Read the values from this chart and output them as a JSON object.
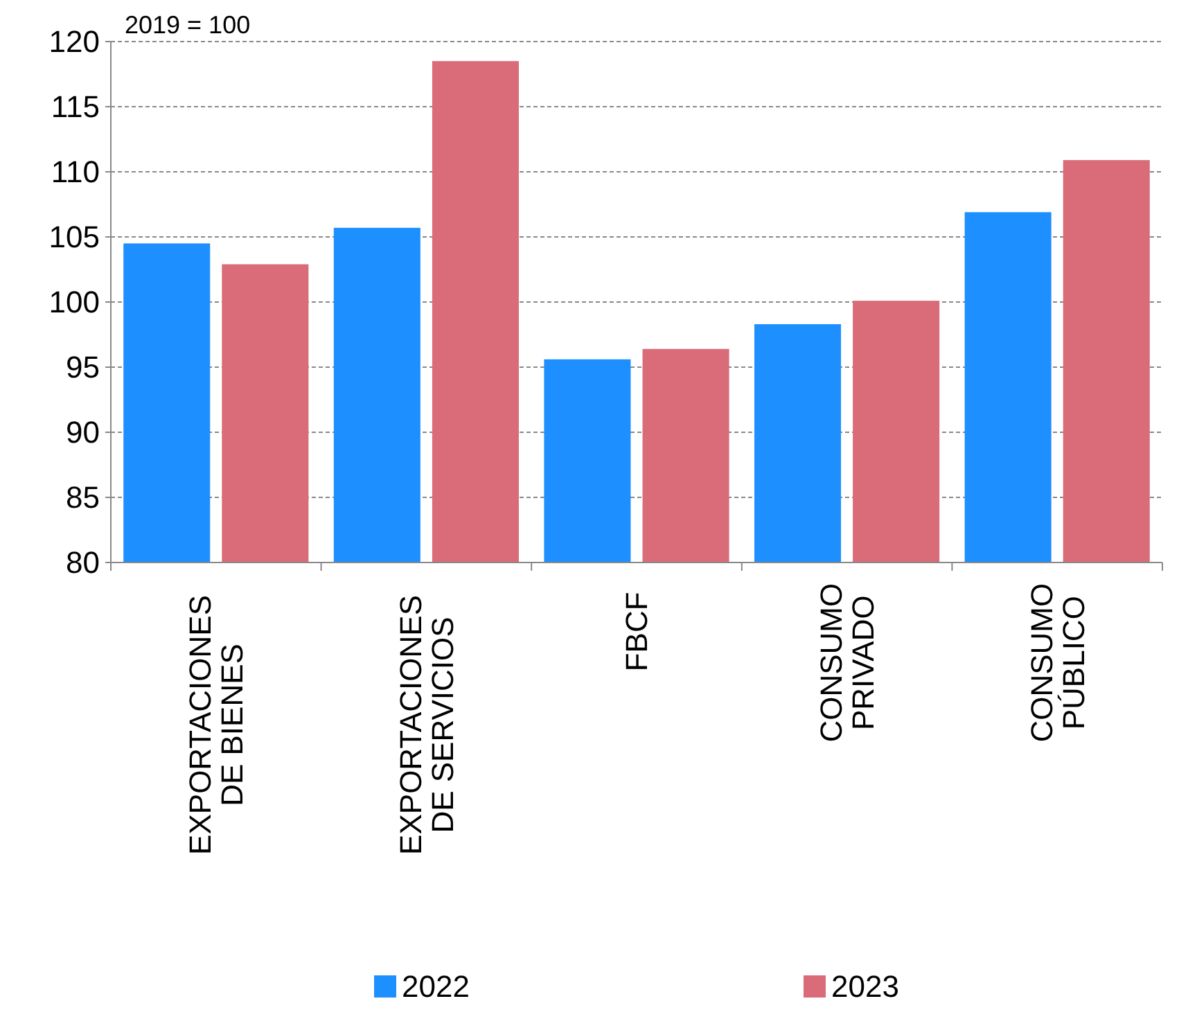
{
  "chart_data": {
    "type": "bar",
    "ylabel": "2019 = 100",
    "categories": [
      "EXPORTACIONES DE BIENES",
      "EXPORTACIONES DE SERVICIOS",
      "FBCF",
      "CONSUMO PRIVADO",
      "CONSUMO PÚBLICO"
    ],
    "series": [
      {
        "name": "2022",
        "color": "#1e8fff",
        "values": [
          104.5,
          105.7,
          95.6,
          98.3,
          106.9
        ]
      },
      {
        "name": "2023",
        "color": "#d96c78",
        "values": [
          102.9,
          118.5,
          96.4,
          100.1,
          110.9
        ]
      }
    ],
    "ylim": [
      80,
      120
    ],
    "yticks": [
      80,
      85,
      90,
      95,
      100,
      105,
      110,
      115,
      120
    ],
    "grid": "y",
    "legend": "bottom"
  }
}
